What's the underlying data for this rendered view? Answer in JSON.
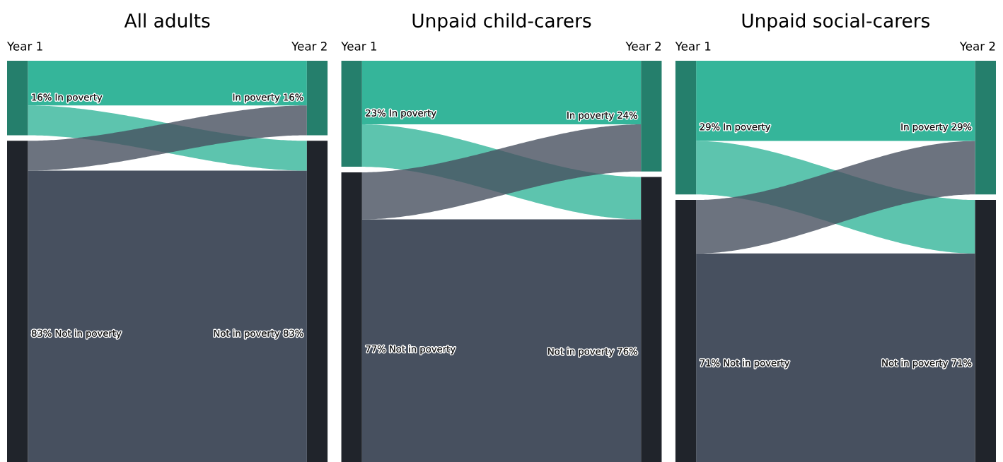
{
  "chart_data": [
    {
      "type": "other",
      "title": "All adults",
      "categories": [
        "Year 1",
        "Year 2"
      ],
      "series": [
        {
          "type": "bar",
          "name": "In poverty",
          "color": "#35b59a",
          "values": [
            16,
            16
          ],
          "value_labels": [
            "16%",
            "16%"
          ]
        },
        {
          "type": "bar",
          "name": "Not in poverty",
          "color": "#47505f",
          "values": [
            83,
            83
          ],
          "value_labels": [
            "83%",
            "83%"
          ]
        }
      ]
    },
    {
      "type": "other",
      "title": "Unpaid child-carers",
      "categories": [
        "Year 1",
        "Year 2"
      ],
      "series": [
        {
          "type": "bar",
          "name": "In poverty",
          "color": "#35b59a",
          "values": [
            23,
            24
          ],
          "value_labels": [
            "23%",
            "24%"
          ]
        },
        {
          "type": "bar",
          "name": "Not in poverty",
          "color": "#47505f",
          "values": [
            77,
            76
          ],
          "value_labels": [
            "77%",
            "76%"
          ]
        }
      ]
    },
    {
      "type": "other",
      "title": "Unpaid social-carers",
      "categories": [
        "Year 1",
        "Year 2"
      ],
      "series": [
        {
          "type": "bar",
          "name": "In poverty",
          "color": "#35b59a",
          "values": [
            29,
            29
          ],
          "value_labels": [
            "29%",
            "29%"
          ]
        },
        {
          "type": "bar",
          "name": "Not in poverty",
          "color": "#47505f",
          "values": [
            71,
            71
          ],
          "value_labels": [
            "71%",
            "71%"
          ]
        }
      ]
    }
  ]
}
